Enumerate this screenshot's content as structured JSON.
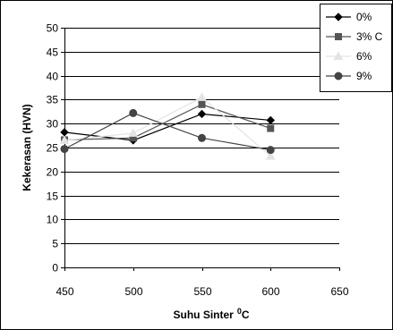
{
  "chart_data": {
    "type": "line",
    "x": [
      450,
      500,
      550,
      600
    ],
    "xlim": [
      450,
      650
    ],
    "ylim": [
      0,
      50
    ],
    "xticks": [
      "450",
      "500",
      "550",
      "600",
      "650"
    ],
    "yticks": [
      "0",
      "5",
      "10",
      "15",
      "20",
      "25",
      "30",
      "35",
      "40",
      "45",
      "50"
    ],
    "xlabel": "Suhu Sinter",
    "xlabel_sup": "0",
    "xlabel_unit": "C",
    "ylabel": "Kekerasan (HVN)",
    "grid": true,
    "legend_position": "top-right",
    "series": [
      {
        "name": "0%",
        "values": [
          28.2,
          26.5,
          32.0,
          30.7
        ],
        "color": "#000000",
        "marker": "diamond"
      },
      {
        "name": "3% C",
        "values": [
          26.6,
          27.0,
          34.0,
          29.0
        ],
        "color": "#555555",
        "marker": "square"
      },
      {
        "name": "6%",
        "values": [
          26.5,
          28.0,
          35.5,
          23.2
        ],
        "color": "#e3e3e3",
        "marker": "triangle"
      },
      {
        "name": "9%",
        "values": [
          24.7,
          32.2,
          27.0,
          24.5
        ],
        "color": "#444444",
        "marker": "circle"
      }
    ]
  }
}
